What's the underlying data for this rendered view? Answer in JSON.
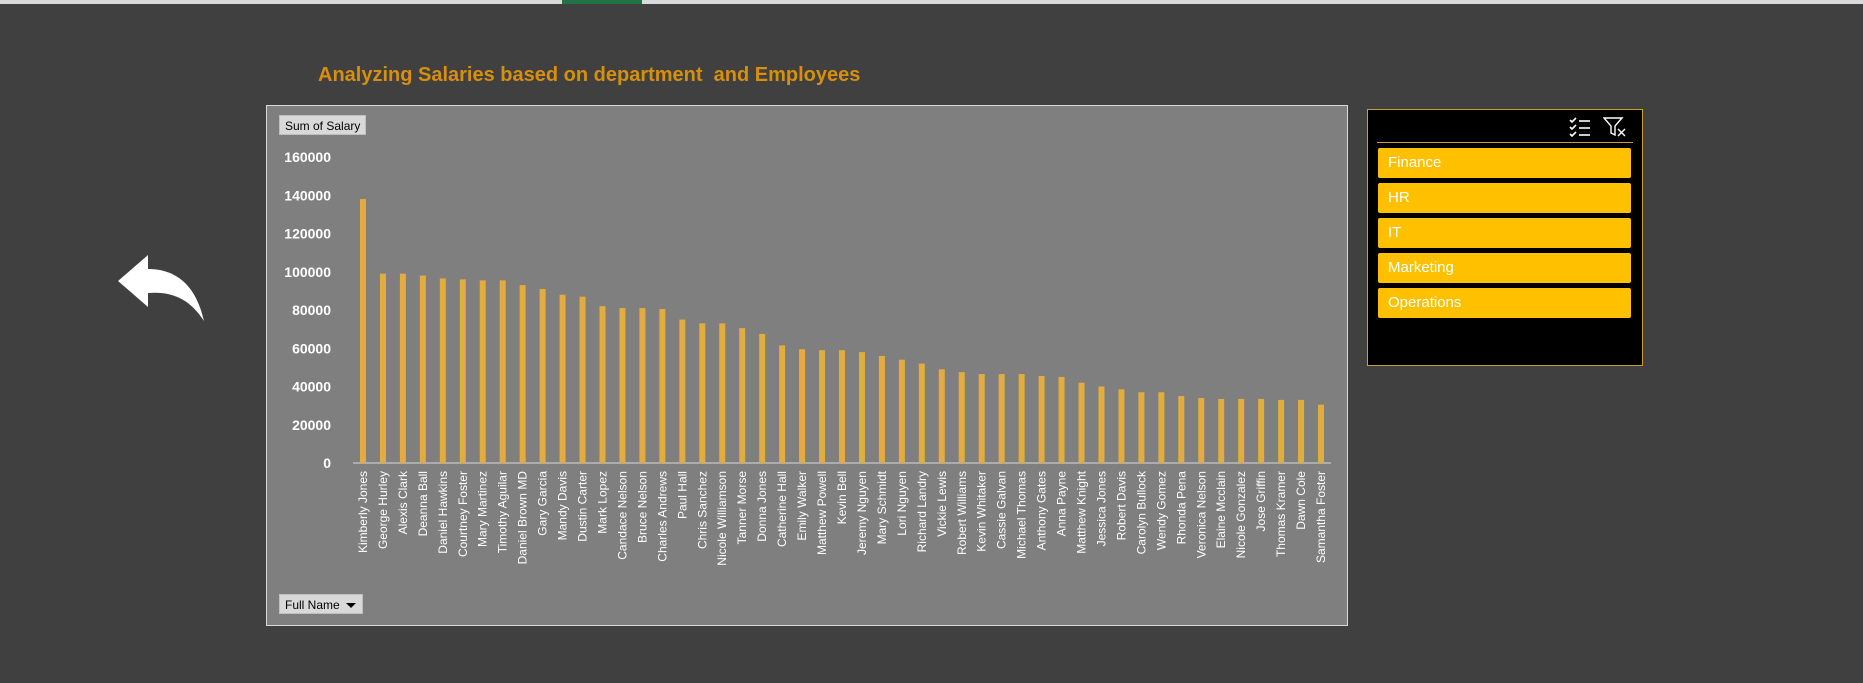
{
  "title": "Analyzing Salaries based on department  and Employees",
  "chart_buttons": {
    "value_field": "Sum of Salary",
    "axis_field": "Full Name"
  },
  "slicer": {
    "items": [
      "Finance",
      "HR",
      "IT",
      "Marketing",
      "Operations"
    ],
    "icons": [
      "multi-select-icon",
      "clear-filter-icon"
    ]
  },
  "colors": {
    "bar": "#e2ac3f",
    "title": "#d68f0e",
    "slicer_item": "#ffc000",
    "plot_bg": "#7f7f7f"
  },
  "chart_data": {
    "type": "bar",
    "ylim": [
      0,
      160000
    ],
    "yticks": [
      "0",
      "20000",
      "40000",
      "60000",
      "80000",
      "100000",
      "120000",
      "140000",
      "160000"
    ],
    "categories": [
      "Kimberly Jones",
      "George Hurley",
      "Alexis Clark",
      "Deanna Ball",
      "Daniel Hawkins",
      "Courtney Foster",
      "Mary Martinez",
      "Timothy Aguilar",
      "Daniel Brown MD",
      "Gary Garcia",
      "Mandy Davis",
      "Dustin Carter",
      "Mark Lopez",
      "Candace Nelson",
      "Bruce Nelson",
      "Charles Andrews",
      "Paul Hall",
      "Chris Sanchez",
      "Nicole Williamson",
      "Tanner Morse",
      "Donna Jones",
      "Catherine Hall",
      "Emily Walker",
      "Matthew Powell",
      "Kevin Bell",
      "Jeremy Nguyen",
      "Mary Schmidt",
      "Lori Nguyen",
      "Richard Landry",
      "Vickie Lewis",
      "Robert Williams",
      "Kevin Whitaker",
      "Cassie Galvan",
      "Michael Thomas",
      "Anthony Gates",
      "Anna Payne",
      "Matthew Knight",
      "Jessica Jones",
      "Robert Davis",
      "Carolyn Bullock",
      "Wendy Gomez",
      "Rhonda Pena",
      "Veronica Nelson",
      "Elaine Mcclain",
      "Nicole Gonzalez",
      "Jose Griffin",
      "Thomas Kramer",
      "Dawn Cole",
      "Samantha Foster"
    ],
    "values": [
      138000,
      99000,
      99000,
      98000,
      96500,
      96000,
      95500,
      95500,
      93000,
      91000,
      88000,
      87000,
      82000,
      81000,
      81000,
      80500,
      75000,
      73000,
      73000,
      70500,
      67500,
      61500,
      59500,
      59000,
      59000,
      58000,
      56000,
      54000,
      52000,
      49000,
      47500,
      46500,
      46500,
      46500,
      45500,
      45000,
      42000,
      40000,
      38500,
      37000,
      37000,
      35000,
      34000,
      33500,
      33500,
      33500,
      33000,
      33000,
      30500
    ],
    "legend": "none",
    "grid": false
  }
}
